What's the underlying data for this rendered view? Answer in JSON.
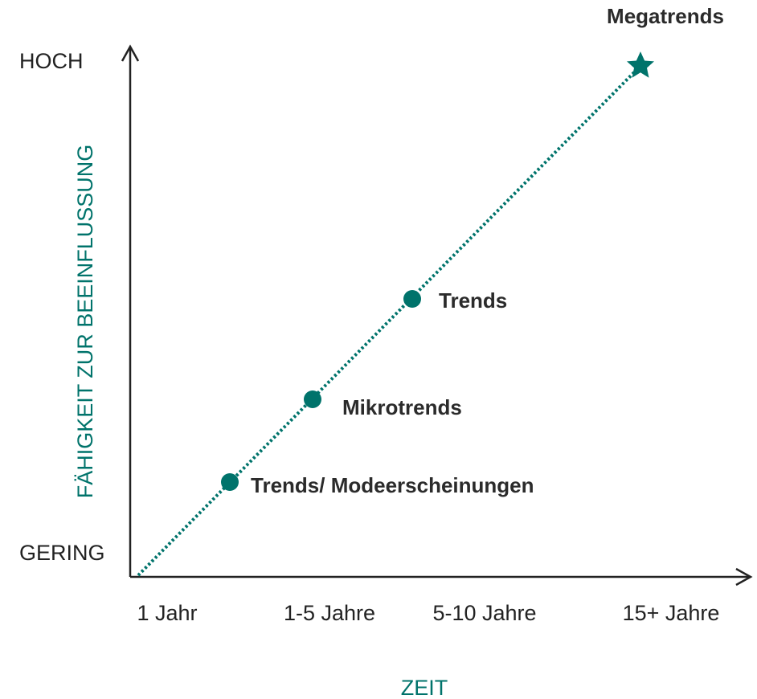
{
  "y_axis": {
    "label": "FÄHIGKEIT ZUR BEEINFLUSSUNG",
    "high": "HOCH",
    "low": "GERING"
  },
  "x_axis": {
    "label": "ZEIT",
    "ticks": [
      "1 Jahr",
      "1-5 Jahre",
      "5-10 Jahre",
      "15+ Jahre"
    ]
  },
  "nodes": [
    {
      "label": "Trends/ Modeerscheinungen"
    },
    {
      "label": "Mikrotrends"
    },
    {
      "label": "Trends"
    },
    {
      "label": "Megatrends"
    }
  ]
}
